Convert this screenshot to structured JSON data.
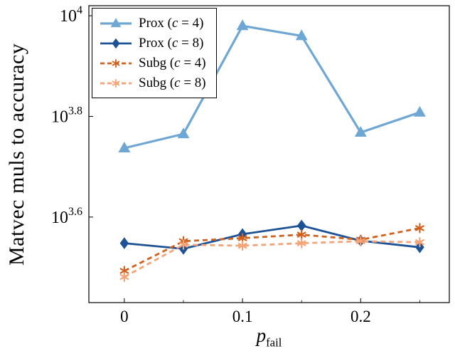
{
  "figure": {
    "ylabel": "Matvec muls to accuracy",
    "xlabel": {
      "var": "p",
      "sub": "fail"
    }
  },
  "chart_data": {
    "type": "line",
    "title": "",
    "grid": false,
    "legend_position": "top-left",
    "x_axis_label": "p_fail",
    "y_axis_label": "Matvec muls to accuracy",
    "y_scale": "log10",
    "x": [
      0,
      0.05,
      0.1,
      0.15,
      0.2,
      0.25
    ],
    "xlim": [
      -0.03,
      0.275
    ],
    "ylog_lim": [
      3.43,
      4.02
    ],
    "x_ticks": {
      "major": [
        0,
        0.1,
        0.2
      ],
      "labels": [
        "0",
        "0.1",
        "0.2"
      ],
      "minor": [
        0.05,
        0.15,
        0.25
      ]
    },
    "y_ticks": [
      {
        "log": 4.0,
        "base": "10",
        "exp": "4"
      },
      {
        "log": 3.8,
        "base": "10",
        "exp": "3.8"
      },
      {
        "log": 3.6,
        "base": "10",
        "exp": "3.6"
      }
    ],
    "series": [
      {
        "id": "prox-c4",
        "label": "Prox (c = 4)",
        "label_parts": [
          "Prox (",
          "c",
          " = 4)"
        ],
        "color": "#6fa7d4",
        "marker": "triangle",
        "dash": "solid",
        "line_width": 3.2,
        "log_values": [
          3.737,
          3.765,
          3.98,
          3.96,
          3.768,
          3.808
        ]
      },
      {
        "id": "prox-c8",
        "label": "Prox (c = 8)",
        "label_parts": [
          "Prox (",
          "c",
          " = 8)"
        ],
        "color": "#1d5296",
        "marker": "diamond",
        "dash": "solid",
        "line_width": 2.8,
        "log_values": [
          3.548,
          3.537,
          3.566,
          3.583,
          3.553,
          3.54
        ]
      },
      {
        "id": "subg-c4",
        "label": "Subg (c = 4)",
        "label_parts": [
          "Subg (",
          "c",
          " = 4)"
        ],
        "color": "#d3611c",
        "marker": "star",
        "dash": "dashed",
        "line_width": 2.8,
        "log_values": [
          3.493,
          3.552,
          3.558,
          3.565,
          3.555,
          3.578
        ]
      },
      {
        "id": "subg-c8",
        "label": "Subg (c = 8)",
        "label_parts": [
          "Subg (",
          "c",
          " = 8)"
        ],
        "color": "#f5a478",
        "marker": "star",
        "dash": "dashed",
        "line_width": 2.8,
        "log_values": [
          3.481,
          3.545,
          3.543,
          3.548,
          3.552,
          3.55
        ]
      }
    ]
  }
}
